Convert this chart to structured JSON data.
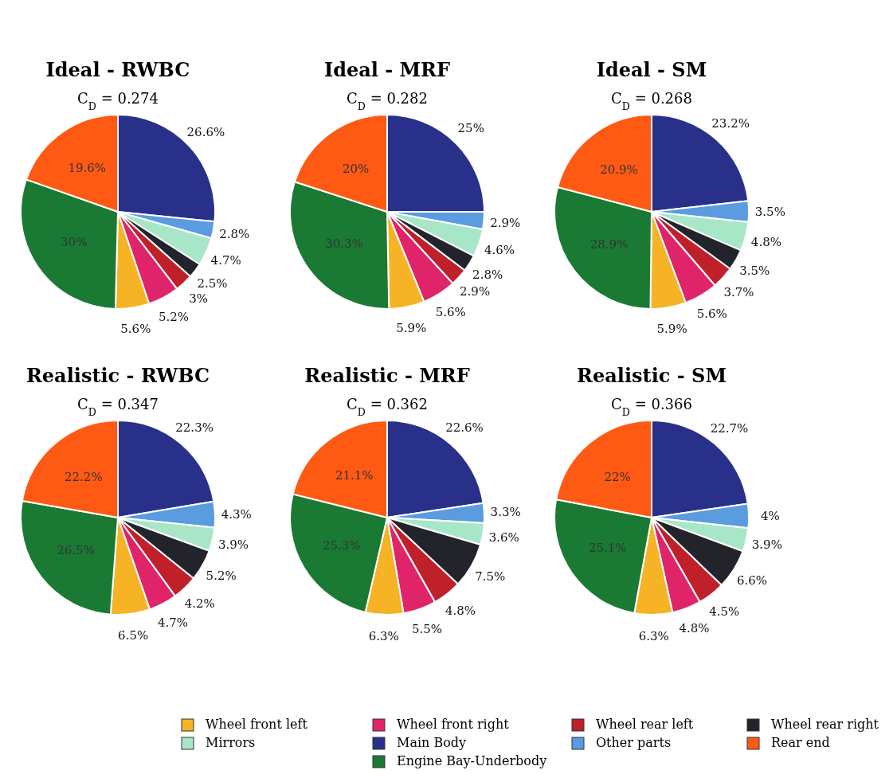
{
  "chart_data": [
    {
      "type": "pie",
      "title": "Ideal - RWBC",
      "subtitle": "C$_{D}$ = 0.274",
      "categories": [
        "Main Body",
        "Other parts",
        "Mirrors",
        "Wheel rear right",
        "Wheel rear left",
        "Wheel front right",
        "Wheel front left",
        "Engine Bay-Underbody",
        "Rear end"
      ],
      "colors": [
        "#28308a",
        "#5b9be0",
        "#a8e6c8",
        "#23232b",
        "#c0202a",
        "#e0246a",
        "#f5b325",
        "#1a7a34",
        "#ff5a14"
      ],
      "values": [
        26.6,
        2.8,
        4.7,
        2.5,
        3,
        5.2,
        5.6,
        30,
        19.6
      ],
      "value_labels": [
        "26.6%",
        "2.8%",
        "4.7%",
        "2.5%",
        "3%",
        "5.2%",
        "5.6%",
        "30%",
        "19.6%"
      ],
      "legend": "bottom"
    },
    {
      "type": "pie",
      "title": "Ideal - MRF",
      "subtitle": "C$_{D}$ = 0.282",
      "categories": [
        null,
        null,
        null,
        null,
        null,
        null,
        null,
        null,
        null
      ],
      "colors": [
        "#28308a",
        "#5b9be0",
        "#a8e6c8",
        "#23232b",
        "#c0202a",
        "#e0246a",
        "#f5b325",
        "#1a7a34",
        "#ff5a14"
      ],
      "values": [
        25,
        2.9,
        4.6,
        2.8,
        2.9,
        5.6,
        5.9,
        30.3,
        20
      ],
      "value_labels": [
        "25%",
        "2.9%",
        "4.6%",
        "2.8%",
        "2.9%",
        "5.6%",
        "5.9%",
        "30.3%",
        "20%"
      ]
    },
    {
      "type": "pie",
      "title": "Ideal - SM",
      "subtitle": "C$_{D}$ = 0.268",
      "categories": [
        null,
        null,
        null,
        null,
        null,
        null,
        null,
        null,
        null
      ],
      "colors": [
        "#28308a",
        "#5b9be0",
        "#a8e6c8",
        "#23232b",
        "#c0202a",
        "#e0246a",
        "#f5b325",
        "#1a7a34",
        "#ff5a14"
      ],
      "values": [
        23.2,
        3.5,
        4.8,
        3.5,
        3.7,
        5.6,
        5.9,
        28.9,
        20.9
      ],
      "value_labels": [
        "23.2%",
        "3.5%",
        "4.8%",
        "3.5%",
        "3.7%",
        "5.6%",
        "5.9%",
        "28.9%",
        "20.9%"
      ]
    },
    {
      "type": "pie",
      "title": "Realistic - RWBC",
      "subtitle": "C$_{D}$ = 0.347",
      "categories": [
        null,
        null,
        null,
        null,
        null,
        null,
        null,
        null,
        null
      ],
      "colors": [
        "#28308a",
        "#5b9be0",
        "#a8e6c8",
        "#23232b",
        "#c0202a",
        "#e0246a",
        "#f5b325",
        "#1a7a34",
        "#ff5a14"
      ],
      "values": [
        22.3,
        4.3,
        3.9,
        5.2,
        4.2,
        4.7,
        6.5,
        26.5,
        22.2
      ],
      "value_labels": [
        "22.3%",
        "4.3%",
        "3.9%",
        "5.2%",
        "4.2%",
        "4.7%",
        "6.5%",
        "26.5%",
        "22.2%"
      ]
    },
    {
      "type": "pie",
      "title": "Realistic - MRF",
      "subtitle": "C$_{D}$ = 0.362",
      "categories": [
        null,
        null,
        null,
        null,
        null,
        null,
        null,
        null,
        null
      ],
      "colors": [
        "#28308a",
        "#5b9be0",
        "#a8e6c8",
        "#23232b",
        "#c0202a",
        "#e0246a",
        "#f5b325",
        "#1a7a34",
        "#ff5a14"
      ],
      "values": [
        22.6,
        3.3,
        3.6,
        7.5,
        4.8,
        5.5,
        6.3,
        25.3,
        21.1
      ],
      "value_labels": [
        "22.6%",
        "3.3%",
        "3.6%",
        "7.5%",
        "4.8%",
        "5.5%",
        "6.3%",
        "25.3%",
        "21.1%"
      ]
    },
    {
      "type": "pie",
      "title": "Realistic - SM",
      "subtitle": "C$_{D}$ = 0.366",
      "categories": [
        null,
        null,
        null,
        null,
        null,
        null,
        null,
        null,
        null
      ],
      "colors": [
        "#28308a",
        "#5b9be0",
        "#a8e6c8",
        "#23232b",
        "#c0202a",
        "#e0246a",
        "#f5b325",
        "#1a7a34",
        "#ff5a14"
      ],
      "values": [
        22.7,
        4,
        3.9,
        6.6,
        4.5,
        4.8,
        6.3,
        25.1,
        22
      ],
      "value_labels": [
        "22.7%",
        "4%",
        "3.9%",
        "6.6%",
        "4.5%",
        "4.8%",
        "6.3%",
        "25.1%",
        "22%"
      ]
    }
  ]
}
